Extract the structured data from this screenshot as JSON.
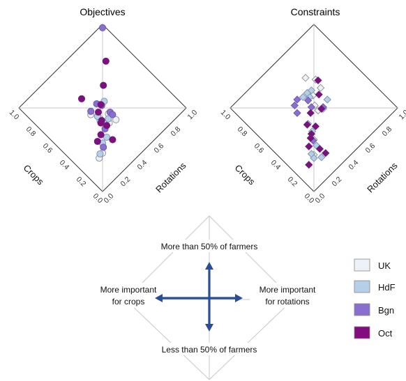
{
  "chart_data": [
    {
      "type": "scatter",
      "title": "Objectives",
      "xlabel": "Crops",
      "ylabel": "Rotations",
      "xlim": [
        0,
        1
      ],
      "ylim": [
        0,
        1
      ],
      "ticks": [
        "0.0",
        "0.2",
        "0.4",
        "0.6",
        "0.8",
        "1.0"
      ],
      "marker": "circle",
      "series": [
        {
          "name": "UK",
          "points": [
            [
              0.53,
              0.39
            ],
            [
              0.45,
              0.42
            ],
            [
              0.43,
              0.5
            ],
            [
              0.35,
              0.51
            ],
            [
              0.4,
              0.43
            ],
            [
              0.37,
              0.45
            ],
            [
              0.23,
              0.23
            ],
            [
              0.22,
              0.18
            ]
          ]
        },
        {
          "name": "HdF",
          "points": [
            [
              0.44,
              0.41
            ],
            [
              0.4,
              0.47
            ],
            [
              0.48,
              0.42
            ],
            [
              0.29,
              0.29
            ],
            [
              0.3,
              0.35
            ],
            [
              0.24,
              0.21
            ],
            [
              0.53,
              0.55
            ]
          ]
        },
        {
          "name": "Bgn",
          "points": [
            [
              0.36,
              0.39
            ],
            [
              0.56,
              0.49
            ],
            [
              0.52,
              0.51
            ],
            [
              0.43,
              0.52
            ],
            [
              0.98,
              0.98
            ],
            [
              0.4,
              0.52
            ],
            [
              0.55,
              0.41
            ],
            [
              0.26,
              0.27
            ]
          ]
        },
        {
          "name": "Oct",
          "points": [
            [
              0.68,
              0.43
            ],
            [
              0.76,
              0.8
            ],
            [
              0.63,
              0.64
            ],
            [
              0.53,
              0.51
            ],
            [
              0.43,
              0.42
            ],
            [
              0.37,
              0.42
            ],
            [
              0.35,
              0.33
            ],
            [
              0.25,
              0.37
            ],
            [
              0.33,
              0.27
            ],
            [
              0.42,
              0.4
            ],
            [
              0.5,
              0.45
            ]
          ]
        }
      ]
    },
    {
      "type": "scatter",
      "title": "Constraints",
      "xlabel": "Crops",
      "ylabel": "Rotations",
      "xlim": [
        0,
        1
      ],
      "ylim": [
        0,
        1
      ],
      "ticks": [
        "0.0",
        "0.2",
        "0.4",
        "0.6",
        "0.8",
        "1.0"
      ],
      "marker": "diamond",
      "series": [
        {
          "name": "UK",
          "points": [
            [
              0.73,
              0.63
            ],
            [
              0.66,
              0.68
            ],
            [
              0.58,
              0.66
            ],
            [
              0.58,
              0.57
            ],
            [
              0.51,
              0.52
            ],
            [
              0.46,
              0.51
            ],
            [
              0.31,
              0.31
            ],
            [
              0.22,
              0.22
            ]
          ]
        },
        {
          "name": "HdF",
          "points": [
            [
              0.62,
              0.59
            ],
            [
              0.45,
              0.55
            ],
            [
              0.59,
              0.54
            ],
            [
              0.63,
              0.5
            ],
            [
              0.44,
              0.37
            ],
            [
              0.37,
              0.35
            ],
            [
              0.26,
              0.29
            ],
            [
              0.16,
              0.25
            ],
            [
              0.24,
              0.21
            ],
            [
              0.2,
              0.2
            ],
            [
              0.47,
              0.63
            ],
            [
              0.63,
              0.55
            ],
            [
              0.44,
              0.55
            ]
          ]
        },
        {
          "name": "Bgn",
          "points": [
            [
              0.65,
              0.45
            ],
            [
              0.52,
              0.49
            ],
            [
              0.45,
              0.56
            ],
            [
              0.57,
              0.37
            ],
            [
              0.63,
              0.4
            ],
            [
              0.58,
              0.51
            ],
            [
              0.31,
              0.3
            ]
          ]
        },
        {
          "name": "Oct",
          "points": [
            [
              0.44,
              0.36
            ],
            [
              0.49,
              0.45
            ],
            [
              0.36,
              0.33
            ],
            [
              0.34,
              0.3
            ],
            [
              0.38,
              0.4
            ],
            [
              0.3,
              0.24
            ],
            [
              0.22,
              0.29
            ],
            [
              0.19,
              0.13
            ],
            [
              0.64,
              0.69
            ],
            [
              0.45,
              0.54
            ],
            [
              0.55,
              0.61
            ],
            [
              0.16,
              0.3
            ]
          ]
        }
      ]
    }
  ],
  "key": {
    "top": "More than 50% of farmers",
    "bottom": "Less than 50% of farmers",
    "left_line1": "More important",
    "left_line2": "for crops",
    "right_line1": "More important",
    "right_line2": "for rotations"
  },
  "legend": [
    {
      "label": "UK",
      "color": "#eef2f8"
    },
    {
      "label": "HdF",
      "color": "#b6cfe8"
    },
    {
      "label": "Bgn",
      "color": "#8b6fd0"
    },
    {
      "label": "Oct",
      "color": "#830c7e"
    }
  ],
  "colors": {
    "UK": "#eef2f8",
    "HdF": "#b6cfe8",
    "Bgn": "#8b6fd0",
    "Oct": "#830c7e",
    "arrow": "#2a4e96"
  }
}
